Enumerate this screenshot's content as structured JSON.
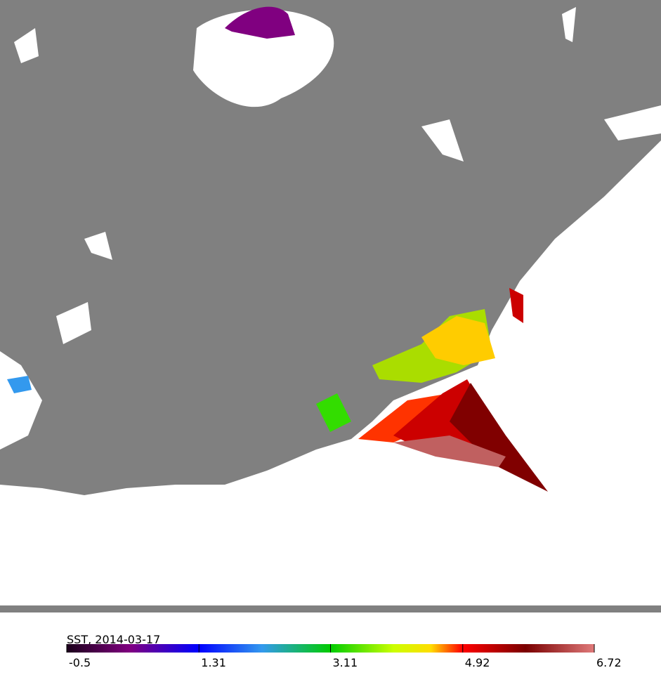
{
  "colorbar": {
    "title": "SST, 2014-03-17",
    "ticks": [
      -0.5,
      1.31,
      3.11,
      4.92,
      6.72
    ]
  }
}
